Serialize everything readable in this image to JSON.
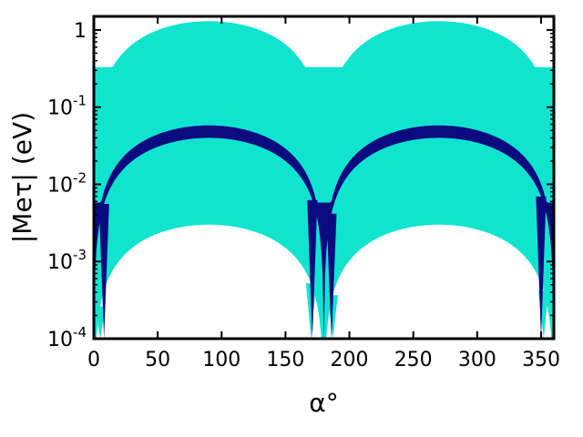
{
  "chart_data": {
    "type": "scatter",
    "xlabel": "α°",
    "ylabel": "|Meτ| (eV)",
    "xlim": [
      0,
      360
    ],
    "ylim": [
      0.0001,
      1.5
    ],
    "yscale": "log",
    "grid": false,
    "x_ticks": [
      0,
      50,
      100,
      150,
      200,
      250,
      300,
      350
    ],
    "x_tick_labels": [
      "0",
      "50",
      "100",
      "150",
      "200",
      "250",
      "300",
      "350"
    ],
    "y_ticks": [
      0.0001,
      0.001,
      0.01,
      0.1,
      1
    ],
    "y_tick_labels": [
      {
        "base": "10",
        "exp": "-4"
      },
      {
        "base": "10",
        "exp": "-3"
      },
      {
        "base": "10",
        "exp": "-2"
      },
      {
        "base": "10",
        "exp": "-1"
      },
      {
        "base": "1",
        "exp": ""
      }
    ],
    "series": [
      {
        "color": "#10e4cf",
        "upper": {
          "amplitude": 1.3,
          "floor": 0.33
        },
        "lower": {
          "amplitude": 0.003,
          "floor": 0.0001
        },
        "notches": [
          {
            "x": 5,
            "ymin": 0.0001
          },
          {
            "x": 170,
            "ymin": 0.0001
          },
          {
            "x": 187,
            "ymin": 0.0001
          },
          {
            "x": 352,
            "ymin": 0.0001
          }
        ]
      },
      {
        "color": "#0b0b80",
        "upper": {
          "amplitude": 0.058,
          "floor": 0.0058
        },
        "lower": {
          "amplitude": 0.04,
          "floor": 0.0001
        },
        "notches": [
          {
            "x": 8,
            "ymin": 0.0001
          },
          {
            "x": 171,
            "ymin": 0.0001
          },
          {
            "x": 186,
            "ymin": 0.0001
          },
          {
            "x": 350,
            "ymin": 0.0001
          }
        ]
      }
    ]
  }
}
